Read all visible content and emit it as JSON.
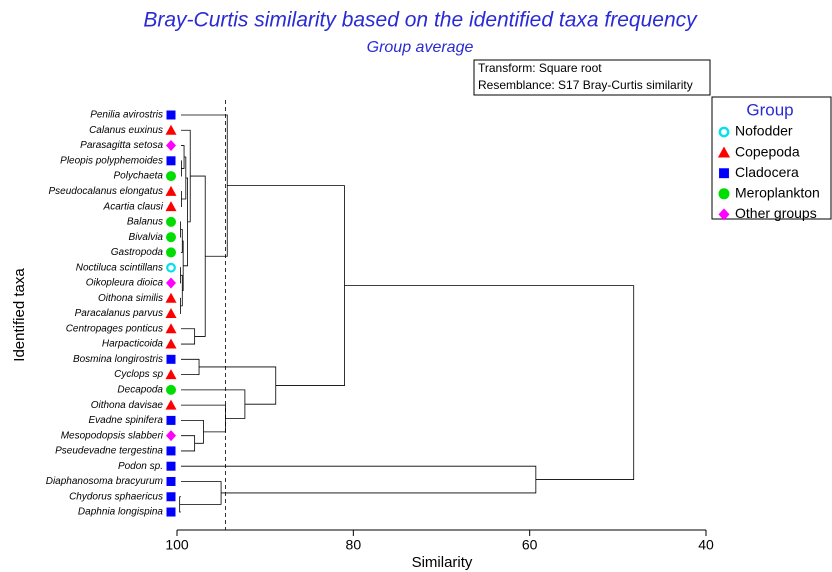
{
  "chart_data": {
    "type": "dendrogram",
    "title": "Bray-Curtis similarity based on the identified taxa frequency",
    "subtitle": "Group average",
    "xlabel": "Similarity",
    "ylabel": "Identified taxa",
    "xlim": [
      100,
      40
    ],
    "xticks": [
      100,
      80,
      60,
      40
    ],
    "cut_line": 94.5,
    "annotations": [
      "Transform: Square root",
      "Resemblance: S17 Bray-Curtis similarity"
    ],
    "legend": {
      "title": "Group",
      "position": "right",
      "groups": [
        {
          "name": "Nofodder",
          "color": "#00e0ee",
          "marker": "ring"
        },
        {
          "name": "Copepoda",
          "color": "#ff0000",
          "marker": "triangle"
        },
        {
          "name": "Cladocera",
          "color": "#0000ff",
          "marker": "square"
        },
        {
          "name": "Meroplankton",
          "color": "#00dd00",
          "marker": "circle"
        },
        {
          "name": "Other groups",
          "color": "#ff00ff",
          "marker": "diamond"
        }
      ]
    },
    "leaves": [
      {
        "name": "Penilia avirostris",
        "group": "Cladocera"
      },
      {
        "name": "Calanus euxinus",
        "group": "Copepoda"
      },
      {
        "name": "Parasagitta setosa",
        "group": "Other groups"
      },
      {
        "name": "Pleopis polyphemoides",
        "group": "Cladocera"
      },
      {
        "name": "Polychaeta",
        "group": "Meroplankton"
      },
      {
        "name": "Pseudocalanus elongatus",
        "group": "Copepoda"
      },
      {
        "name": "Acartia clausi",
        "group": "Copepoda"
      },
      {
        "name": "Balanus",
        "group": "Meroplankton"
      },
      {
        "name": "Bivalvia",
        "group": "Meroplankton"
      },
      {
        "name": "Gastropoda",
        "group": "Meroplankton"
      },
      {
        "name": "Noctiluca scintillans",
        "group": "Nofodder"
      },
      {
        "name": "Oikopleura dioica",
        "group": "Other groups"
      },
      {
        "name": "Oithona similis",
        "group": "Copepoda"
      },
      {
        "name": "Paracalanus parvus",
        "group": "Copepoda"
      },
      {
        "name": "Centropages ponticus",
        "group": "Copepoda"
      },
      {
        "name": "Harpacticoida",
        "group": "Copepoda"
      },
      {
        "name": "Bosmina longirostris",
        "group": "Cladocera"
      },
      {
        "name": "Cyclops sp",
        "group": "Copepoda"
      },
      {
        "name": "Decapoda",
        "group": "Meroplankton"
      },
      {
        "name": "Oithona davisae",
        "group": "Copepoda"
      },
      {
        "name": "Evadne spinifera",
        "group": "Cladocera"
      },
      {
        "name": "Mesopodopsis slabberi",
        "group": "Other groups"
      },
      {
        "name": "Pseudevadne tergestina",
        "group": "Cladocera"
      },
      {
        "name": "Podon sp.",
        "group": "Cladocera"
      },
      {
        "name": "Diaphanosoma bracyurum",
        "group": "Cladocera"
      },
      {
        "name": "Chydorus sphaericus",
        "group": "Cladocera"
      },
      {
        "name": "Daphnia longispina",
        "group": "Cladocera"
      }
    ],
    "merges": [
      {
        "children": [
          12,
          13
        ],
        "height": 99.6
      },
      {
        "children": [
          10,
          11
        ],
        "height": 99.6
      },
      {
        "children": [
          7,
          8
        ],
        "height": 99.6
      },
      {
        "children": [
          29,
          9
        ],
        "height": 99.4
      },
      {
        "children": [
          28,
          27
        ],
        "height": 99.4
      },
      {
        "children": [
          30,
          31
        ],
        "height": 99.3
      },
      {
        "children": [
          5,
          6
        ],
        "height": 99.5
      },
      {
        "children": [
          3,
          4
        ],
        "height": 99.5
      },
      {
        "children": [
          2,
          34
        ],
        "height": 99.2
      },
      {
        "children": [
          35,
          33
        ],
        "height": 99.0
      },
      {
        "children": [
          36,
          32
        ],
        "height": 98.8
      },
      {
        "children": [
          1,
          37
        ],
        "height": 98.5
      },
      {
        "children": [
          14,
          15
        ],
        "height": 98.0
      },
      {
        "children": [
          38,
          39
        ],
        "height": 96.8
      },
      {
        "children": [
          0,
          40
        ],
        "height": 94.3
      },
      {
        "children": [
          16,
          17
        ],
        "height": 97.5
      },
      {
        "children": [
          21,
          22
        ],
        "height": 98.0
      },
      {
        "children": [
          20,
          43
        ],
        "height": 97.0
      },
      {
        "children": [
          19,
          44
        ],
        "height": 94.5
      },
      {
        "children": [
          18,
          45
        ],
        "height": 92.3
      },
      {
        "children": [
          42,
          46
        ],
        "height": 88.8
      },
      {
        "children": [
          41,
          47
        ],
        "height": 81.0
      },
      {
        "children": [
          25,
          26
        ],
        "height": 99.7
      },
      {
        "children": [
          24,
          49
        ],
        "height": 95.0
      },
      {
        "children": [
          23,
          50
        ],
        "height": 59.3
      },
      {
        "children": [
          48,
          51
        ],
        "height": 48.2
      }
    ]
  }
}
